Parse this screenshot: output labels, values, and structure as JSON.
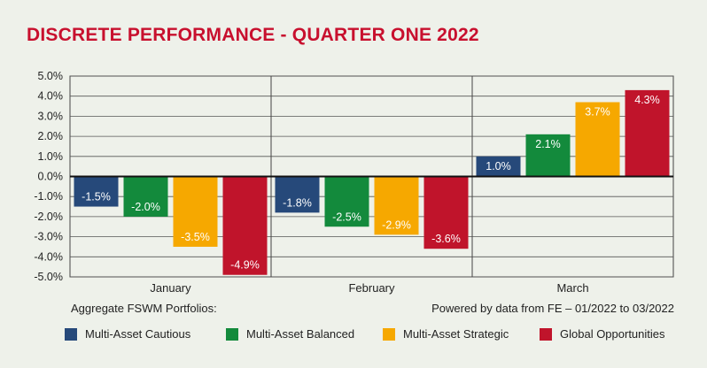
{
  "title": "DISCRETE PERFORMANCE - QUARTER ONE 2022",
  "footer": {
    "left": "Aggregate FSWM Portfolios:",
    "right": "Powered by data from FE – 01/2022 to 03/2022"
  },
  "chart_data": {
    "type": "bar",
    "title": "DISCRETE PERFORMANCE - QUARTER ONE 2022",
    "xlabel": "",
    "ylabel": "",
    "ylim": [
      -5.0,
      5.0
    ],
    "yticks": [
      5.0,
      4.0,
      3.0,
      2.0,
      1.0,
      0.0,
      -1.0,
      -2.0,
      -3.0,
      -4.0,
      -5.0
    ],
    "ytick_labels": [
      "5.0%",
      "4.0%",
      "3.0%",
      "2.0%",
      "1.0%",
      "0.0%",
      "-1.0%",
      "-2.0%",
      "-3.0%",
      "-4.0%",
      "-5.0%"
    ],
    "grid": true,
    "legend_position": "bottom",
    "categories": [
      "January",
      "February",
      "March"
    ],
    "series": [
      {
        "name": "Multi-Asset Cautious",
        "color": "#26497a",
        "values": [
          -1.5,
          -1.8,
          1.0
        ],
        "labels": [
          "-1.5%",
          "-1.8%",
          "1.0%"
        ]
      },
      {
        "name": "Multi-Asset Balanced",
        "color": "#138a3c",
        "values": [
          -2.0,
          -2.5,
          2.1
        ],
        "labels": [
          "-2.0%",
          "-2.5%",
          "2.1%"
        ]
      },
      {
        "name": "Multi-Asset Strategic",
        "color": "#f6a800",
        "values": [
          -3.5,
          -2.9,
          3.7
        ],
        "labels": [
          "-3.5%",
          "-2.9%",
          "3.7%"
        ]
      },
      {
        "name": "Global Opportunities",
        "color": "#c0142b",
        "values": [
          -4.9,
          -3.6,
          4.3
        ],
        "labels": [
          "-4.9%",
          "-3.6%",
          "4.3%"
        ]
      }
    ]
  }
}
